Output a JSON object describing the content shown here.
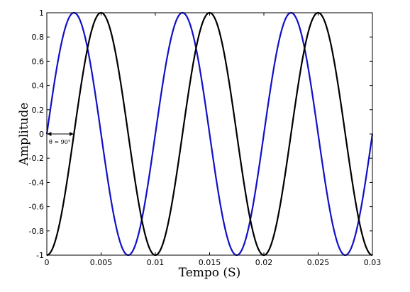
{
  "chart_data": {
    "type": "line",
    "title": "",
    "xlabel": "Tempo (S)",
    "ylabel": "Amplitude",
    "xlim": [
      0,
      0.03
    ],
    "ylim": [
      -1,
      1
    ],
    "grid": false,
    "x_ticks": [
      "0",
      "0.005",
      "0.01",
      "0.015",
      "0.02",
      "0.025",
      "0.03"
    ],
    "y_ticks": [
      "1",
      "0.8",
      "0.6",
      "0.4",
      "0.2",
      "0",
      "-0.2",
      "-0.4",
      "-0.6",
      "-0.8",
      "-1"
    ],
    "series": [
      {
        "color": "#1010c8",
        "frequency_hz": 100,
        "x": [
          0,
          0.0025,
          0.005,
          0.0075,
          0.01,
          0.0125,
          0.015,
          0.0175,
          0.02,
          0.0225,
          0.025,
          0.0275,
          0.03
        ],
        "values": [
          0,
          1,
          0,
          -1,
          0,
          1,
          0,
          -1,
          0,
          1,
          0,
          -1,
          0
        ]
      },
      {
        "color": "#000000",
        "frequency_hz": 100,
        "x": [
          0,
          0.0025,
          0.005,
          0.0075,
          0.01,
          0.0125,
          0.015,
          0.0175,
          0.02,
          0.0225,
          0.025,
          0.0275,
          0.03
        ],
        "values": [
          -1,
          0,
          1,
          0,
          -1,
          0,
          1,
          0,
          -1,
          0,
          1,
          0,
          -1
        ]
      }
    ],
    "annotations": [
      {
        "text": "θ = 90°",
        "x_start": 0,
        "x_end": 0.0025,
        "y": 0
      }
    ]
  }
}
